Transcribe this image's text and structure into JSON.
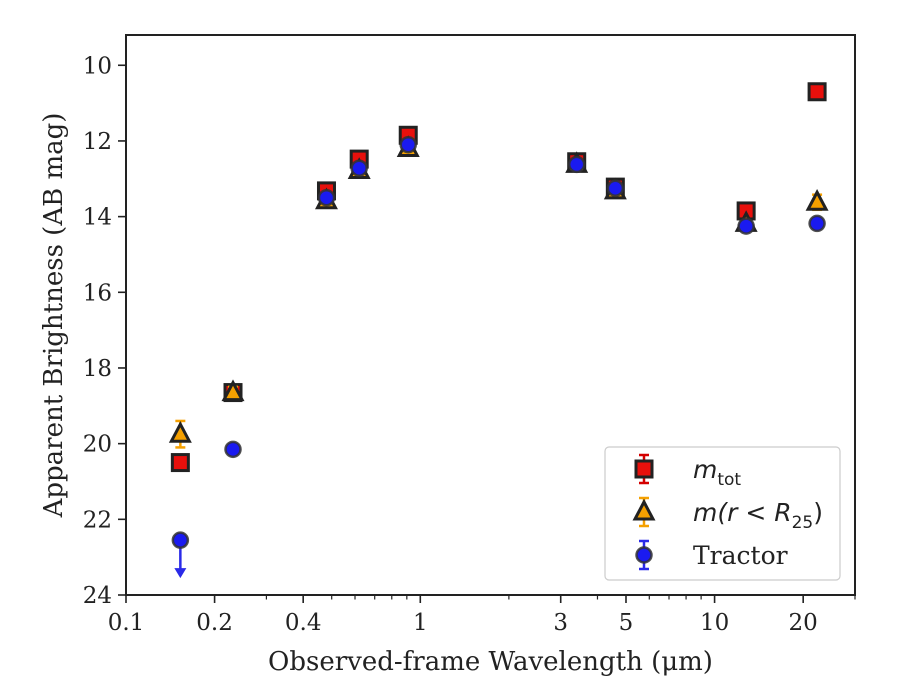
{
  "chart_data": {
    "type": "scatter",
    "title": "",
    "xlabel": "Observed-frame Wavelength (μm)",
    "ylabel": "Apparent Brightness (AB mag)",
    "xscale": "log",
    "xlim": [
      0.1,
      30
    ],
    "ylim": [
      24,
      9.2
    ],
    "y_inverted": true,
    "grid": false,
    "legend_position": "lower right",
    "x_major_ticks": [
      {
        "value": 0.1,
        "label": "0.1"
      },
      {
        "value": 0.2,
        "label": "0.2"
      },
      {
        "value": 0.4,
        "label": "0.4"
      },
      {
        "value": 1,
        "label": "1"
      },
      {
        "value": 3,
        "label": "3"
      },
      {
        "value": 5,
        "label": "5"
      },
      {
        "value": 10,
        "label": "10"
      },
      {
        "value": 20,
        "label": "20"
      }
    ],
    "y_ticks": [
      {
        "value": 10,
        "label": "10"
      },
      {
        "value": 12,
        "label": "12"
      },
      {
        "value": 14,
        "label": "14"
      },
      {
        "value": 16,
        "label": "16"
      },
      {
        "value": 18,
        "label": "18"
      },
      {
        "value": 20,
        "label": "20"
      },
      {
        "value": 22,
        "label": "22"
      },
      {
        "value": 24,
        "label": "24"
      }
    ],
    "series": [
      {
        "name": "m_tot",
        "marker": "square",
        "color": "#e8100c",
        "edge_color": "#222222",
        "errorbar_color": "#d40000",
        "points": [
          {
            "x": 0.153,
            "y": 20.5,
            "yerr": 0.15
          },
          {
            "x": 0.231,
            "y": 18.65,
            "yerr": 0.1
          },
          {
            "x": 0.48,
            "y": 13.32,
            "yerr": 0.08
          },
          {
            "x": 0.62,
            "y": 12.48,
            "yerr": 0.08
          },
          {
            "x": 0.91,
            "y": 11.85,
            "yerr": 0.08
          },
          {
            "x": 3.4,
            "y": 12.55,
            "yerr": 0.05
          },
          {
            "x": 4.6,
            "y": 13.22,
            "yerr": 0.05
          },
          {
            "x": 12.8,
            "y": 13.85,
            "yerr": 0.05
          },
          {
            "x": 22.3,
            "y": 10.7,
            "yerr": 0.05
          }
        ]
      },
      {
        "name": "m(r < R25)",
        "marker": "triangle",
        "color": "#f5a000",
        "edge_color": "#222222",
        "errorbar_color": "#f5a000",
        "points": [
          {
            "x": 0.153,
            "y": 19.75,
            "yerr": 0.35
          },
          {
            "x": 0.231,
            "y": 18.65,
            "yerr": 0.15
          },
          {
            "x": 0.48,
            "y": 13.58,
            "yerr": 0.05
          },
          {
            "x": 0.62,
            "y": 12.78,
            "yerr": 0.05
          },
          {
            "x": 0.91,
            "y": 12.2,
            "yerr": 0.05
          },
          {
            "x": 3.4,
            "y": 12.62,
            "yerr": 0.05
          },
          {
            "x": 4.6,
            "y": 13.32,
            "yerr": 0.05
          },
          {
            "x": 12.8,
            "y": 14.18,
            "yerr": 0.05
          },
          {
            "x": 22.3,
            "y": 13.62,
            "yerr": 0.2
          }
        ]
      },
      {
        "name": "Tractor",
        "marker": "circle",
        "color": "#1a1af0",
        "edge_color": "#333333",
        "errorbar_color": "#2a2ae8",
        "points": [
          {
            "x": 0.153,
            "y": 22.55,
            "upper_limit": true
          },
          {
            "x": 0.231,
            "y": 20.15,
            "yerr": 0.05
          },
          {
            "x": 0.48,
            "y": 13.5,
            "yerr": 0.05
          },
          {
            "x": 0.62,
            "y": 12.72,
            "yerr": 0.05
          },
          {
            "x": 0.91,
            "y": 12.1,
            "yerr": 0.05
          },
          {
            "x": 3.4,
            "y": 12.62,
            "yerr": 0.05
          },
          {
            "x": 4.6,
            "y": 13.25,
            "yerr": 0.05
          },
          {
            "x": 12.8,
            "y": 14.25,
            "yerr": 0.05
          },
          {
            "x": 22.3,
            "y": 14.18,
            "yerr": 0.05
          }
        ]
      }
    ],
    "legend": {
      "entries": [
        {
          "series": "m_tot",
          "main": "m",
          "sub": "tot",
          "rest": ""
        },
        {
          "series": "m(r < R25)",
          "main": "m(r < R",
          "sub": "25",
          "rest": ")"
        },
        {
          "series": "Tractor",
          "main": "Tractor",
          "sub": "",
          "rest": ""
        }
      ]
    }
  }
}
